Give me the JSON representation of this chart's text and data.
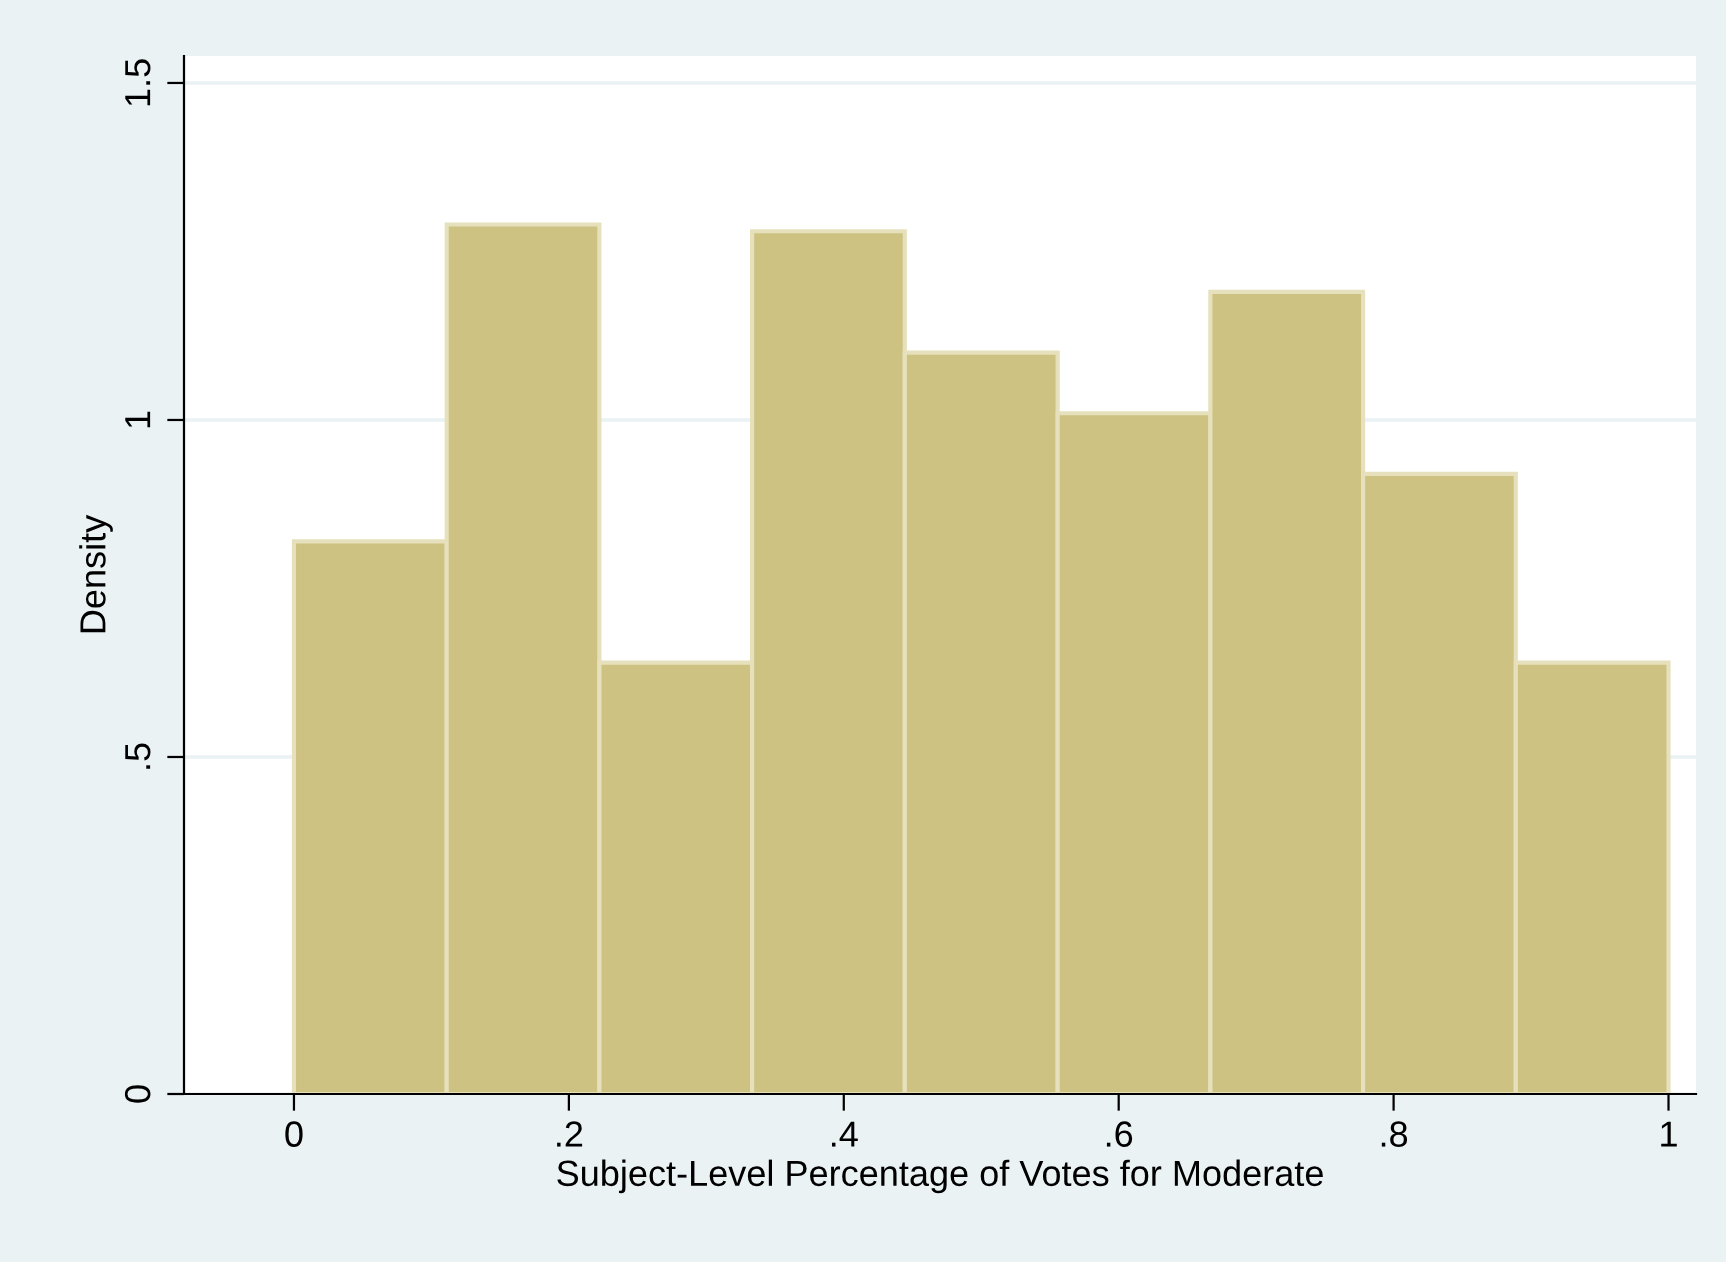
{
  "chart_data": {
    "type": "histogram",
    "xlabel": "Subject-Level Percentage of Votes for Moderate",
    "ylabel": "Density",
    "bins": [
      0,
      0.1111,
      0.2222,
      0.3333,
      0.4444,
      0.5556,
      0.6667,
      0.7778,
      0.8889,
      1
    ],
    "values": [
      0.82,
      1.29,
      0.64,
      1.28,
      1.1,
      1.01,
      1.19,
      0.92,
      0.64
    ],
    "color": "#cdc282",
    "xlim": [
      -0.08,
      1.02
    ],
    "ylim": [
      0,
      1.54
    ],
    "xticks": [
      0,
      {
        "value": 0.2,
        "label": ".2"
      },
      {
        "value": 0.4,
        "label": ".4"
      },
      {
        "value": 0.6,
        "label": ".6"
      },
      {
        "value": 0.8,
        "label": ".8"
      },
      1
    ],
    "yticks": [
      0,
      {
        "value": 0.5,
        "label": ".5"
      },
      1,
      1.5
    ],
    "grid": "y"
  }
}
